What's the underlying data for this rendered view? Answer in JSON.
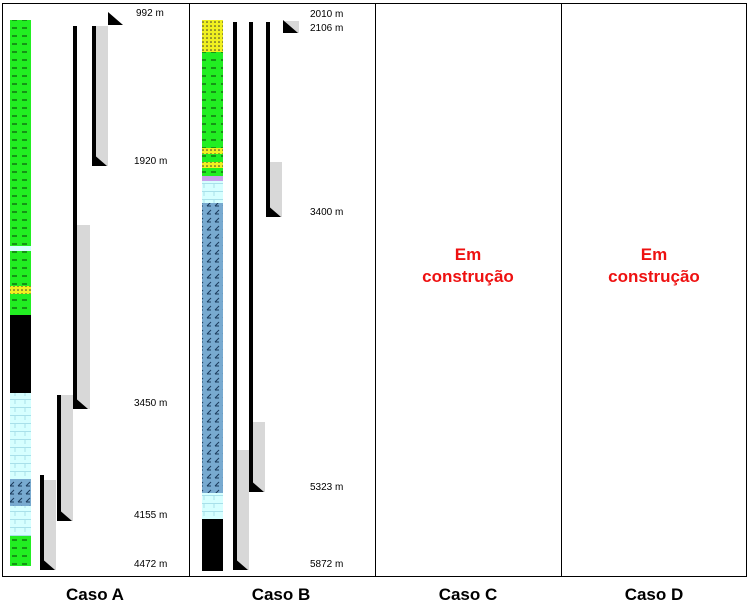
{
  "colors": {
    "shale": "#22ee22",
    "sand": "#f0f020",
    "salt": "#000000",
    "anhydrite": "#d6ffff",
    "carbonate": "#78aad0",
    "casing_shade": "#d8d8d8",
    "construction_text": "#ee1111"
  },
  "panels": [
    {
      "label": "Caso A",
      "depth_labels": [
        "992 m",
        "1920 m",
        "3450 m",
        "4155 m",
        "4472 m"
      ]
    },
    {
      "label": "Caso B",
      "depth_labels": [
        "2010 m",
        "2106 m",
        "3400 m",
        "5323 m",
        "5872 m"
      ]
    },
    {
      "label": "Caso C",
      "status_line1": "Em",
      "status_line2": "construção"
    },
    {
      "label": "Caso D",
      "status_line1": "Em",
      "status_line2": "construção"
    }
  ]
}
